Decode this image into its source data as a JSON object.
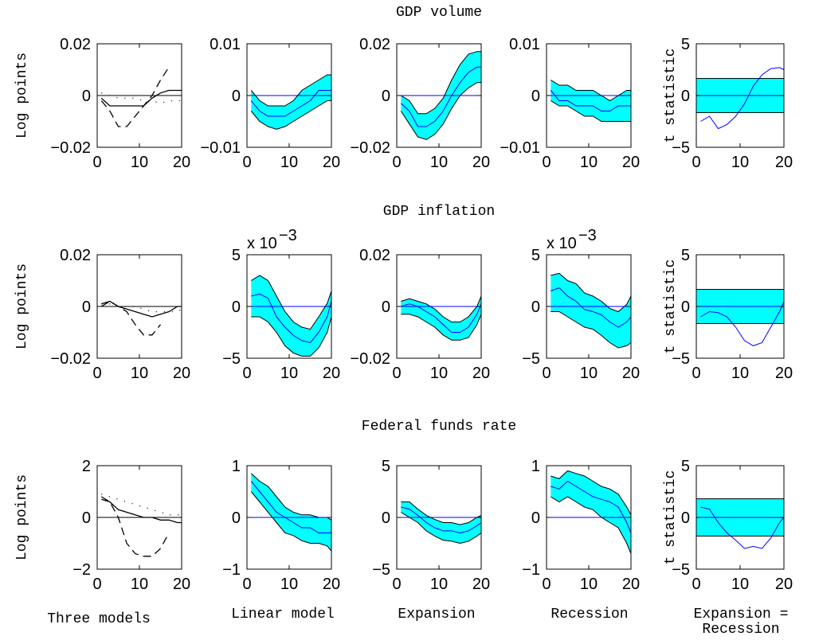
{
  "chart_data": [
    {
      "type": "line",
      "ylabel": "Log points",
      "xlim": [
        0,
        20
      ],
      "xticks": [
        0,
        10,
        20
      ],
      "ylim": [
        -0.02,
        0.02
      ],
      "yticks": [
        {
          "value": -0.02,
          "label": "−0.02"
        },
        0,
        0.02
      ],
      "x": [
        1,
        3,
        5,
        7,
        9,
        11,
        13,
        15,
        17,
        19,
        20
      ],
      "series": [
        {
          "color": "#000000",
          "dash": "solid",
          "values": [
            -0.001,
            -0.004,
            -0.004,
            -0.004,
            -0.004,
            -0.004,
            -0.001,
            0.001,
            0.002,
            0.002,
            0.002
          ]
        },
        {
          "color": "#000000",
          "dash": "dashed",
          "values": [
            -0.002,
            -0.006,
            -0.012,
            -0.012,
            -0.008,
            -0.004,
            0,
            0.006,
            0.011,
            null,
            null
          ]
        },
        {
          "color": "#000000",
          "dash": "dotted",
          "values": [
            0.001,
            0,
            -0.001,
            -0.001,
            -0.001,
            -0.002,
            -0.002,
            -0.003,
            -0.002,
            -0.002,
            -0.002
          ]
        }
      ]
    },
    {
      "type": "band",
      "color": "#00ffff",
      "line_color": "#0000ff",
      "xlim": [
        0,
        20
      ],
      "xticks": [
        0,
        10,
        20
      ],
      "ylim": [
        -0.01,
        0.01
      ],
      "yticks": [
        {
          "value": -0.01,
          "label": "−0.01"
        },
        0,
        0.01
      ],
      "x": [
        1,
        3,
        5,
        7,
        9,
        11,
        13,
        15,
        17,
        19,
        20
      ],
      "values": [
        -0.001,
        -0.003,
        -0.004,
        -0.004,
        -0.004,
        -0.003,
        -0.002,
        -0.001,
        0.001,
        0.001,
        0.001
      ],
      "lower": [
        -0.003,
        -0.005,
        -0.006,
        -0.0065,
        -0.006,
        -0.005,
        -0.004,
        -0.003,
        -0.002,
        -0.001,
        -0.001
      ],
      "upper": [
        0.001,
        -0.001,
        -0.002,
        -0.002,
        -0.002,
        -0.001,
        0.001,
        0.002,
        0.003,
        0.004,
        0.004
      ]
    },
    {
      "type": "band",
      "title": "GDP volume",
      "color": "#00ffff",
      "line_color": "#0000ff",
      "xlim": [
        0,
        20
      ],
      "xticks": [
        0,
        10,
        20
      ],
      "ylim": [
        -0.02,
        0.02
      ],
      "yticks": [
        {
          "value": -0.02,
          "label": "−0.02"
        },
        0,
        0.02
      ],
      "x": [
        1,
        3,
        5,
        7,
        9,
        11,
        13,
        15,
        17,
        19,
        20
      ],
      "values": [
        -0.003,
        -0.006,
        -0.012,
        -0.012,
        -0.01,
        -0.006,
        0,
        0.005,
        0.009,
        0.011,
        0.011
      ],
      "lower": [
        -0.006,
        -0.011,
        -0.016,
        -0.017,
        -0.015,
        -0.011,
        -0.005,
        0,
        0.003,
        0.005,
        0.005
      ],
      "upper": [
        0,
        -0.002,
        -0.007,
        -0.007,
        -0.005,
        -0.001,
        0.006,
        0.012,
        0.016,
        0.017,
        0.017
      ]
    },
    {
      "type": "band",
      "color": "#00ffff",
      "line_color": "#0000ff",
      "xlim": [
        0,
        20
      ],
      "xticks": [
        0,
        10,
        20
      ],
      "ylim": [
        -0.01,
        0.01
      ],
      "yticks": [
        {
          "value": -0.01,
          "label": "−0.01"
        },
        0,
        0.01
      ],
      "x": [
        1,
        3,
        5,
        7,
        9,
        11,
        13,
        15,
        17,
        19,
        20
      ],
      "values": [
        0.001,
        -0.001,
        -0.001,
        -0.002,
        -0.002,
        -0.002,
        -0.003,
        -0.003,
        -0.002,
        -0.002,
        -0.002
      ],
      "lower": [
        -0.001,
        -0.002,
        -0.002,
        -0.003,
        -0.004,
        -0.004,
        -0.005,
        -0.005,
        -0.005,
        -0.005,
        -0.005
      ],
      "upper": [
        0.003,
        0.002,
        0.002,
        0.001,
        0.001,
        0.001,
        0,
        -0.001,
        0,
        0.001,
        0.001
      ]
    },
    {
      "type": "tstat",
      "ylabel": "t statistic",
      "color": "#00ffff",
      "line_color": "#0000ff",
      "xlim": [
        0,
        20
      ],
      "xticks": [
        0,
        10,
        20
      ],
      "ylim": [
        -5,
        5
      ],
      "yticks": [
        {
          "value": -5,
          "label": "−5"
        },
        0,
        5
      ],
      "x": [
        1,
        3,
        5,
        7,
        9,
        11,
        13,
        15,
        17,
        19,
        20
      ],
      "band": [
        -1.65,
        1.65
      ],
      "values": [
        -2.5,
        -2,
        -3.2,
        -2.8,
        -2,
        -0.8,
        0.9,
        2,
        2.6,
        2.7,
        2.5
      ]
    },
    {
      "type": "line",
      "ylabel": "Log points",
      "xlim": [
        0,
        20
      ],
      "xticks": [
        0,
        10,
        20
      ],
      "ylim": [
        -0.02,
        0.02
      ],
      "yticks": [
        {
          "value": -0.02,
          "label": "−0.02"
        },
        0,
        0.02
      ],
      "x": [
        1,
        3,
        5,
        7,
        9,
        11,
        13,
        15,
        17,
        19,
        20
      ],
      "series": [
        {
          "color": "#000000",
          "dash": "solid",
          "values": [
            0.001,
            0.002,
            0,
            -0.001,
            -0.002,
            -0.003,
            -0.004,
            -0.003,
            -0.002,
            0,
            0
          ]
        },
        {
          "color": "#000000",
          "dash": "dashed",
          "values": [
            0,
            0.002,
            0,
            -0.002,
            -0.007,
            -0.011,
            -0.011,
            -0.007,
            null,
            null,
            null
          ]
        },
        {
          "color": "#000000",
          "dash": "dotted",
          "values": [
            0.001,
            0.001,
            0,
            0,
            0,
            -0.001,
            -0.002,
            -0.002,
            -0.002,
            -0.002,
            -0.001
          ]
        }
      ]
    },
    {
      "type": "band",
      "scale_label": "x 10",
      "scale_exp": "−3",
      "color": "#00ffff",
      "line_color": "#0000ff",
      "xlim": [
        0,
        20
      ],
      "xticks": [
        0,
        10,
        20
      ],
      "ylim": [
        -5,
        5
      ],
      "yticks": [
        {
          "value": -5,
          "label": "−5"
        },
        0,
        5
      ],
      "x": [
        1,
        3,
        5,
        7,
        9,
        11,
        13,
        15,
        17,
        19,
        20
      ],
      "values": [
        1,
        1.2,
        0.8,
        -1,
        -2,
        -2.8,
        -3.3,
        -3.5,
        -2.5,
        -1,
        0.5
      ],
      "lower": [
        -1,
        -1,
        -1.5,
        -2.5,
        -3.8,
        -4.5,
        -4.8,
        -4.8,
        -4,
        -2.5,
        -1
      ],
      "upper": [
        2.5,
        3,
        2.5,
        1,
        -0.5,
        -1.5,
        -2,
        -2.2,
        -1,
        0.3,
        1.5
      ]
    },
    {
      "type": "band",
      "title": "GDP inflation",
      "color": "#00ffff",
      "line_color": "#0000ff",
      "xlim": [
        0,
        20
      ],
      "xticks": [
        0,
        10,
        20
      ],
      "ylim": [
        -0.02,
        0.02
      ],
      "yticks": [
        {
          "value": -0.02,
          "label": "−0.02"
        },
        0,
        0.02
      ],
      "x": [
        1,
        3,
        5,
        7,
        9,
        11,
        13,
        15,
        17,
        19,
        20
      ],
      "values": [
        0,
        0.001,
        0,
        -0.002,
        -0.004,
        -0.007,
        -0.01,
        -0.01,
        -0.008,
        -0.003,
        0.001
      ],
      "lower": [
        -0.003,
        -0.003,
        -0.004,
        -0.006,
        -0.008,
        -0.011,
        -0.013,
        -0.013,
        -0.012,
        -0.007,
        -0.003
      ],
      "upper": [
        0.002,
        0.003,
        0.002,
        0.001,
        -0.001,
        -0.004,
        -0.006,
        -0.006,
        -0.004,
        0,
        0.004
      ]
    },
    {
      "type": "band",
      "scale_label": "x 10",
      "scale_exp": "−3",
      "color": "#00ffff",
      "line_color": "#0000ff",
      "xlim": [
        0,
        20
      ],
      "xticks": [
        0,
        10,
        20
      ],
      "ylim": [
        -5,
        5
      ],
      "yticks": [
        {
          "value": -5,
          "label": "−5"
        },
        0,
        5
      ],
      "x": [
        1,
        3,
        5,
        7,
        9,
        11,
        13,
        15,
        17,
        19,
        20
      ],
      "values": [
        1.5,
        1.8,
        1,
        0.5,
        -0.3,
        -0.5,
        -0.8,
        -1.5,
        -2,
        -1.5,
        -1
      ],
      "lower": [
        -0.5,
        -0.5,
        -1,
        -1.5,
        -2,
        -2.2,
        -2.8,
        -3.5,
        -4,
        -3.8,
        -3.5
      ],
      "upper": [
        3,
        3.2,
        2.5,
        2.2,
        1.3,
        1,
        0.5,
        -0.2,
        -0.5,
        0.2,
        1
      ]
    },
    {
      "type": "tstat",
      "ylabel": "t statistic",
      "color": "#00ffff",
      "line_color": "#0000ff",
      "xlim": [
        0,
        20
      ],
      "xticks": [
        0,
        10,
        20
      ],
      "ylim": [
        -5,
        5
      ],
      "yticks": [
        {
          "value": -5,
          "label": "−5"
        },
        0,
        5
      ],
      "x": [
        1,
        3,
        5,
        7,
        9,
        11,
        13,
        15,
        17,
        19,
        20
      ],
      "band": [
        -1.65,
        1.65
      ],
      "values": [
        -1,
        -0.5,
        -0.6,
        -1,
        -2,
        -3.3,
        -3.8,
        -3.5,
        -2,
        -0.5,
        0.5
      ]
    },
    {
      "type": "line",
      "ylabel": "Log points",
      "xlabel": [
        "Three models"
      ],
      "xlim": [
        0,
        20
      ],
      "xticks": [
        0,
        10,
        20
      ],
      "ylim": [
        -2,
        2
      ],
      "yticks": [
        {
          "value": -2,
          "label": "−2"
        },
        0,
        2
      ],
      "x": [
        1,
        3,
        5,
        7,
        9,
        11,
        13,
        15,
        17,
        19,
        20
      ],
      "series": [
        {
          "color": "#000000",
          "dash": "solid",
          "values": [
            0.7,
            0.6,
            0.3,
            0.2,
            0.1,
            0,
            0,
            -0.1,
            -0.1,
            -0.2,
            -0.2
          ]
        },
        {
          "color": "#000000",
          "dash": "dashed",
          "values": [
            0.8,
            0.6,
            0,
            -1,
            -1.4,
            -1.5,
            -1.5,
            -1.2,
            -0.6,
            null,
            null
          ]
        },
        {
          "color": "#000000",
          "dash": "dotted",
          "values": [
            0.9,
            0.8,
            0.7,
            0.6,
            0.5,
            0.4,
            0.3,
            0.2,
            0.1,
            0.1,
            0.1
          ]
        }
      ]
    },
    {
      "type": "band",
      "xlabel": [
        "Linear model"
      ],
      "color": "#00ffff",
      "line_color": "#0000ff",
      "xlim": [
        0,
        20
      ],
      "xticks": [
        0,
        10,
        20
      ],
      "ylim": [
        -1,
        1
      ],
      "yticks": [
        {
          "value": -1,
          "label": "−1"
        },
        0,
        1
      ],
      "x": [
        1,
        3,
        5,
        7,
        9,
        11,
        13,
        15,
        17,
        19,
        20
      ],
      "values": [
        0.7,
        0.5,
        0.3,
        0.1,
        0,
        -0.1,
        -0.2,
        -0.2,
        -0.3,
        -0.3,
        -0.3
      ],
      "lower": [
        0.5,
        0.3,
        0.1,
        -0.1,
        -0.3,
        -0.35,
        -0.45,
        -0.5,
        -0.5,
        -0.55,
        -0.65
      ],
      "upper": [
        0.85,
        0.7,
        0.6,
        0.4,
        0.2,
        0.1,
        0.05,
        0.05,
        0,
        0,
        -0.05
      ]
    },
    {
      "type": "band",
      "title": "Federal funds rate",
      "xlabel": [
        "Expansion"
      ],
      "color": "#00ffff",
      "line_color": "#0000ff",
      "xlim": [
        0,
        20
      ],
      "xticks": [
        0,
        10,
        20
      ],
      "ylim": [
        -5,
        5
      ],
      "yticks": [
        {
          "value": -5,
          "label": "−5"
        },
        0,
        5
      ],
      "x": [
        1,
        3,
        5,
        7,
        9,
        11,
        13,
        15,
        17,
        19,
        20
      ],
      "values": [
        1,
        0.8,
        0.2,
        -0.5,
        -1,
        -1.3,
        -1.3,
        -1.5,
        -1.3,
        -0.8,
        -0.5
      ],
      "lower": [
        0.5,
        0,
        -0.5,
        -1.3,
        -1.8,
        -2.2,
        -2.3,
        -2.5,
        -2.3,
        -1.8,
        -1.5
      ],
      "upper": [
        1.5,
        1.5,
        0.8,
        0.2,
        -0.2,
        -0.5,
        -0.5,
        -0.7,
        -0.5,
        0,
        0.2
      ]
    },
    {
      "type": "band",
      "xlabel": [
        "Recession"
      ],
      "color": "#00ffff",
      "line_color": "#0000ff",
      "xlim": [
        0,
        20
      ],
      "xticks": [
        0,
        10,
        20
      ],
      "ylim": [
        -1,
        1
      ],
      "yticks": [
        {
          "value": -1,
          "label": "−1"
        },
        0,
        1
      ],
      "x": [
        1,
        3,
        5,
        7,
        9,
        11,
        13,
        15,
        17,
        19,
        20
      ],
      "values": [
        0.6,
        0.55,
        0.7,
        0.6,
        0.5,
        0.4,
        0.35,
        0.3,
        0.2,
        -0.1,
        -0.3
      ],
      "lower": [
        0.4,
        0.3,
        0.4,
        0.3,
        0.2,
        0.15,
        0,
        -0.1,
        -0.2,
        -0.5,
        -0.7
      ],
      "upper": [
        0.8,
        0.75,
        0.9,
        0.85,
        0.8,
        0.7,
        0.6,
        0.55,
        0.45,
        0.2,
        0.05
      ]
    },
    {
      "type": "tstat",
      "ylabel": "t statistic",
      "xlabel": [
        "Expansion =",
        "Recession"
      ],
      "color": "#00ffff",
      "line_color": "#0000ff",
      "xlim": [
        0,
        20
      ],
      "xticks": [
        0,
        10,
        20
      ],
      "ylim": [
        -5,
        5
      ],
      "yticks": [
        {
          "value": -5,
          "label": "−5"
        },
        0,
        5
      ],
      "x": [
        1,
        3,
        5,
        7,
        9,
        11,
        13,
        15,
        17,
        19,
        20
      ],
      "band": [
        -1.8,
        1.8
      ],
      "values": [
        1,
        0.8,
        -0.5,
        -1.5,
        -2.2,
        -3,
        -2.8,
        -3,
        -2,
        -0.5,
        0
      ]
    }
  ]
}
